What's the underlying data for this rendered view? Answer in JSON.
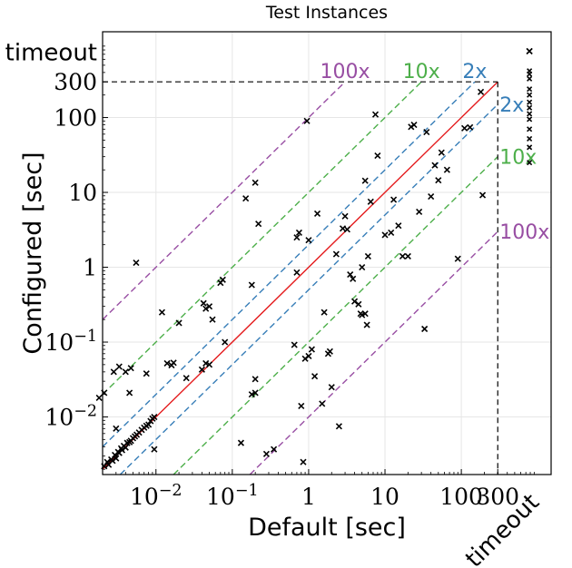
{
  "chart_data": {
    "type": "scatter",
    "title": "Test Instances",
    "xlabel": "Default [sec]",
    "ylabel": "Configured [sec]",
    "x_scale": "log",
    "y_scale": "log",
    "xlim": [
      0.002,
      1500
    ],
    "ylim": [
      0.0017,
      1400
    ],
    "grid": true,
    "cutoff_sec": 300,
    "timeout_label": "timeout",
    "x_ticks": [
      {
        "value": 0.01,
        "label": "10^-2"
      },
      {
        "value": 0.1,
        "label": "10^-1"
      },
      {
        "value": 1,
        "label": "1"
      },
      {
        "value": 10,
        "label": "10"
      },
      {
        "value": 100,
        "label": "100"
      },
      {
        "value": 300,
        "label": "300"
      }
    ],
    "y_ticks": [
      {
        "value": 0.01,
        "label": "10^-2"
      },
      {
        "value": 0.1,
        "label": "10^-1"
      },
      {
        "value": 1,
        "label": "1"
      },
      {
        "value": 10,
        "label": "10"
      },
      {
        "value": 100,
        "label": "100"
      },
      {
        "value": 300,
        "label": "300"
      }
    ],
    "reference_lines": [
      {
        "factor": 1,
        "label": "",
        "color": "#e41a1c",
        "style": "solid"
      },
      {
        "factor": 2,
        "label": "2x",
        "color": "#377eb8",
        "style": "dashed"
      },
      {
        "factor": 10,
        "label": "10x",
        "color": "#4daf4a",
        "style": "dashed"
      },
      {
        "factor": 100,
        "label": "100x",
        "color": "#984ea3",
        "style": "dashed"
      }
    ],
    "points": [
      [
        0.0021,
        0.0022
      ],
      [
        0.0023,
        0.0025
      ],
      [
        0.0024,
        0.0023
      ],
      [
        0.0026,
        0.0027
      ],
      [
        0.0027,
        0.0026
      ],
      [
        0.0029,
        0.0031
      ],
      [
        0.003,
        0.0028
      ],
      [
        0.0032,
        0.0034
      ],
      [
        0.0033,
        0.0033
      ],
      [
        0.0035,
        0.0038
      ],
      [
        0.0036,
        0.0036
      ],
      [
        0.0038,
        0.0041
      ],
      [
        0.004,
        0.0039
      ],
      [
        0.0042,
        0.0045
      ],
      [
        0.0045,
        0.0046
      ],
      [
        0.0047,
        0.0048
      ],
      [
        0.005,
        0.0052
      ],
      [
        0.0053,
        0.0055
      ],
      [
        0.0056,
        0.0058
      ],
      [
        0.006,
        0.0062
      ],
      [
        0.0065,
        0.0067
      ],
      [
        0.007,
        0.0072
      ],
      [
        0.0075,
        0.0076
      ],
      [
        0.008,
        0.0079
      ],
      [
        0.0085,
        0.0088
      ],
      [
        0.009,
        0.0095
      ],
      [
        0.0095,
        0.01
      ],
      [
        0.0018,
        0.018
      ],
      [
        0.0021,
        0.021
      ],
      [
        0.0028,
        0.04
      ],
      [
        0.003,
        0.007
      ],
      [
        0.0033,
        0.047
      ],
      [
        0.004,
        0.04
      ],
      [
        0.0045,
        0.021
      ],
      [
        0.0047,
        0.045
      ],
      [
        0.0055,
        1.15
      ],
      [
        0.0075,
        0.038
      ],
      [
        0.0095,
        0.0037
      ],
      [
        0.012,
        0.25
      ],
      [
        0.014,
        0.052
      ],
      [
        0.016,
        0.049
      ],
      [
        0.017,
        0.053
      ],
      [
        0.02,
        0.18
      ],
      [
        0.025,
        0.033
      ],
      [
        0.04,
        0.043
      ],
      [
        0.045,
        0.052
      ],
      [
        0.05,
        0.05
      ],
      [
        0.042,
        0.33
      ],
      [
        0.045,
        0.28
      ],
      [
        0.05,
        0.3
      ],
      [
        0.055,
        0.2
      ],
      [
        0.07,
        0.62
      ],
      [
        0.075,
        0.68
      ],
      [
        0.08,
        0.1
      ],
      [
        0.13,
        0.0045
      ],
      [
        0.18,
        0.02
      ],
      [
        0.2,
        0.021
      ],
      [
        0.2,
        0.032
      ],
      [
        0.18,
        0.58
      ],
      [
        0.15,
        8.3
      ],
      [
        0.2,
        13.5
      ],
      [
        0.22,
        3.8
      ],
      [
        0.28,
        0.0032
      ],
      [
        0.35,
        0.0037
      ],
      [
        0.65,
        0.092
      ],
      [
        0.7,
        2.5
      ],
      [
        0.75,
        2.9
      ],
      [
        0.7,
        0.85
      ],
      [
        0.8,
        0.014
      ],
      [
        0.85,
        0.0025
      ],
      [
        0.9,
        0.06
      ],
      [
        0.95,
        90
      ],
      [
        1,
        2.3
      ],
      [
        1,
        0.065
      ],
      [
        1.1,
        0.08
      ],
      [
        1.2,
        0.035
      ],
      [
        1.3,
        5.2
      ],
      [
        1.5,
        0.015
      ],
      [
        1.6,
        0.25
      ],
      [
        1.8,
        0.07
      ],
      [
        1.9,
        0.075
      ],
      [
        2,
        0.025
      ],
      [
        2.3,
        1.5
      ],
      [
        2.5,
        0.0075
      ],
      [
        2.8,
        3.3
      ],
      [
        3,
        4.8
      ],
      [
        3.2,
        3.2
      ],
      [
        3.5,
        0.8
      ],
      [
        3.8,
        0.7
      ],
      [
        4,
        0.35
      ],
      [
        4.5,
        0.32
      ],
      [
        4.8,
        0.24
      ],
      [
        5,
        0.23
      ],
      [
        5.5,
        0.24
      ],
      [
        5.8,
        0.17
      ],
      [
        5,
        1
      ],
      [
        6,
        1.4
      ],
      [
        5.5,
        14.3
      ],
      [
        6.5,
        7.5
      ],
      [
        7.5,
        110
      ],
      [
        8,
        31
      ],
      [
        10,
        2.7
      ],
      [
        12,
        2.9
      ],
      [
        13,
        8
      ],
      [
        15,
        3.6
      ],
      [
        17,
        1.4
      ],
      [
        20,
        1.4
      ],
      [
        22,
        75
      ],
      [
        24,
        80
      ],
      [
        28,
        5.5
      ],
      [
        33,
        0.15
      ],
      [
        35,
        64
      ],
      [
        40,
        8.8
      ],
      [
        45,
        23
      ],
      [
        50,
        14.5
      ],
      [
        55,
        34
      ],
      [
        65,
        20
      ],
      [
        90,
        1.3
      ],
      [
        110,
        72
      ],
      [
        130,
        74
      ],
      [
        180,
        220
      ],
      [
        190,
        9.2
      ]
    ],
    "timeout_points": [
      {
        "axis": "x",
        "y": 420
      },
      {
        "axis": "x",
        "y": 380
      },
      {
        "axis": "x",
        "y": 330
      },
      {
        "axis": "x",
        "y": 240
      },
      {
        "axis": "x",
        "y": 200
      },
      {
        "axis": "x",
        "y": 160
      },
      {
        "axis": "x",
        "y": 135
      },
      {
        "axis": "x",
        "y": 112
      },
      {
        "axis": "x",
        "y": 95
      },
      {
        "axis": "x",
        "y": 70
      },
      {
        "axis": "x",
        "y": 52
      },
      {
        "axis": "x",
        "y": 40
      },
      {
        "axis": "x",
        "y": 25
      },
      {
        "axis": "both"
      },
      {
        "axis": "both"
      }
    ]
  }
}
